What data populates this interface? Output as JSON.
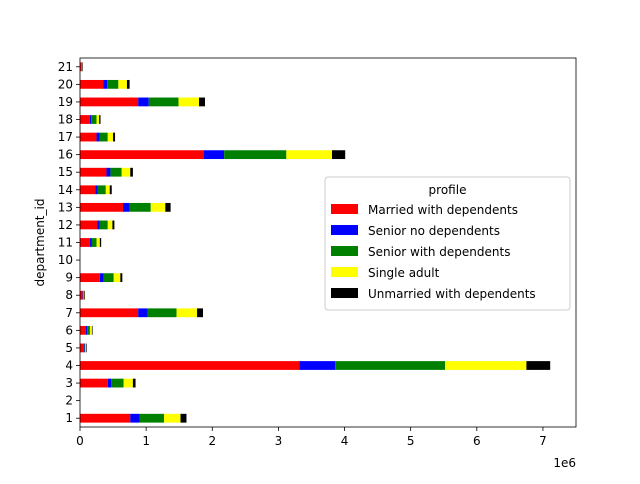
{
  "chart_data": {
    "type": "bar",
    "orientation": "horizontal",
    "stacked": true,
    "categories": [
      "1",
      "2",
      "3",
      "4",
      "5",
      "6",
      "7",
      "8",
      "9",
      "10",
      "11",
      "12",
      "13",
      "14",
      "15",
      "16",
      "17",
      "18",
      "19",
      "20",
      "21"
    ],
    "ylabel": "department_id",
    "xlabel": "",
    "x_ticks": [
      "0",
      "1",
      "2",
      "3",
      "4",
      "5",
      "6",
      "7"
    ],
    "x_multiplier": "1e6",
    "xlim": [
      0,
      7.5
    ],
    "grid": false,
    "legend": {
      "title": "profile",
      "placement": "center-right"
    },
    "series": [
      {
        "name": "Married with dependents",
        "color": "#ff0000",
        "values": [
          0.76,
          0.0,
          0.42,
          3.32,
          0.06,
          0.09,
          0.88,
          0.04,
          0.3,
          0.0,
          0.15,
          0.26,
          0.65,
          0.23,
          0.4,
          1.87,
          0.25,
          0.15,
          0.88,
          0.35,
          0.02
        ]
      },
      {
        "name": "Senior no dependents",
        "color": "#0000ff",
        "values": [
          0.14,
          0.0,
          0.05,
          0.54,
          0.01,
          0.02,
          0.14,
          0.005,
          0.06,
          0.0,
          0.03,
          0.04,
          0.1,
          0.04,
          0.06,
          0.31,
          0.05,
          0.02,
          0.16,
          0.06,
          0.002
        ]
      },
      {
        "name": "Senior with dependents",
        "color": "#008000",
        "values": [
          0.37,
          0.0,
          0.19,
          1.66,
          0.01,
          0.04,
          0.44,
          0.01,
          0.15,
          0.0,
          0.07,
          0.12,
          0.32,
          0.12,
          0.17,
          0.94,
          0.12,
          0.08,
          0.45,
          0.17,
          0.005
        ]
      },
      {
        "name": "Single adult",
        "color": "#ffff00",
        "values": [
          0.25,
          0.0,
          0.14,
          1.23,
          0.01,
          0.03,
          0.31,
          0.01,
          0.1,
          0.0,
          0.05,
          0.07,
          0.22,
          0.06,
          0.13,
          0.69,
          0.08,
          0.04,
          0.31,
          0.13,
          0.003
        ]
      },
      {
        "name": "Unmarried with dependents",
        "color": "#000000",
        "values": [
          0.09,
          0.0,
          0.04,
          0.36,
          0.01,
          0.01,
          0.09,
          0.01,
          0.03,
          0.0,
          0.02,
          0.03,
          0.08,
          0.03,
          0.04,
          0.2,
          0.03,
          0.02,
          0.09,
          0.04,
          0.002
        ]
      }
    ]
  }
}
